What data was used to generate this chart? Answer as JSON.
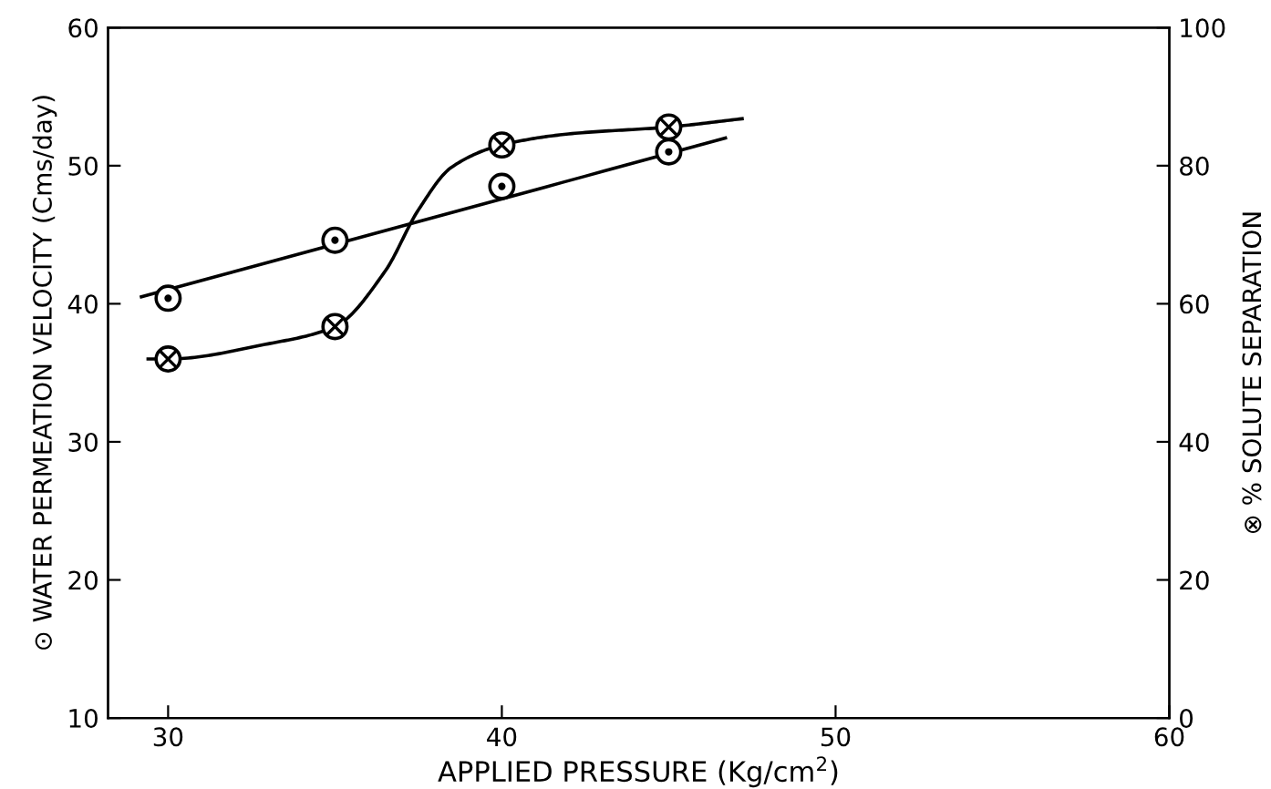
{
  "chart_data": {
    "type": "scatter",
    "xlabel": "APPLIED PRESSURE (Kg/cm$^{2}$)",
    "ylabel": "⊙ WATER PERMEATION VELOCITY (Cms/day)",
    "y2label": "⊗ % SOLUTE SEPARATION",
    "xlim": [
      28.2,
      60
    ],
    "xticks": [
      30,
      40,
      50,
      60
    ],
    "ylim": [
      10,
      60
    ],
    "yticks": [
      10,
      20,
      30,
      40,
      50,
      60
    ],
    "y2lim": [
      0,
      100
    ],
    "y2ticks": [
      0,
      20,
      40,
      60,
      80,
      100
    ],
    "grid": false,
    "legend": false,
    "series": [
      {
        "type": "scatter",
        "marker": "circle",
        "color": "#000000",
        "x": [
          30,
          35,
          40,
          45
        ],
        "values": [
          40.4,
          44.6,
          48.5,
          51.0
        ]
      },
      {
        "type": "line",
        "marker": "none",
        "color": "#000000",
        "x": [
          29.2,
          46.7
        ],
        "values": [
          40.5,
          52.0
        ]
      },
      {
        "type": "scatter",
        "marker": "circle",
        "axis": "y2",
        "color": "#000000",
        "x": [
          30,
          35,
          40,
          45
        ],
        "values": [
          52,
          56.7,
          83,
          85.6
        ]
      },
      {
        "type": "line",
        "marker": "none",
        "axis": "y2",
        "color": "#000000",
        "x": [
          29.4,
          30,
          33,
          35,
          36.5,
          37.5,
          38.5,
          40,
          42,
          45,
          47.2
        ],
        "values": [
          52,
          52,
          54.2,
          56.7,
          64.7,
          73.6,
          79.8,
          83,
          84.6,
          85.6,
          86.8
        ]
      }
    ]
  }
}
